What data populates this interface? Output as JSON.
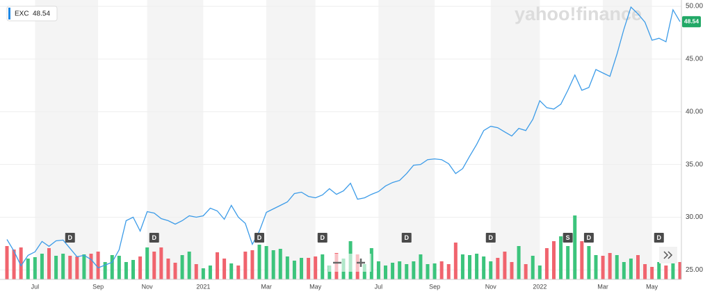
{
  "chart_data": {
    "type": "line",
    "watermark": "yahoo!finance",
    "categories": [
      null,
      null,
      null,
      null,
      "Jul",
      null,
      null,
      null,
      null,
      null,
      null,
      null,
      null,
      "Sep",
      null,
      null,
      null,
      null,
      null,
      null,
      "Nov",
      null,
      null,
      null,
      null,
      null,
      null,
      null,
      "2021",
      null,
      null,
      null,
      null,
      null,
      null,
      null,
      null,
      "Mar",
      null,
      null,
      null,
      null,
      null,
      null,
      "May",
      null,
      null,
      null,
      null,
      null,
      null,
      null,
      null,
      "Jul",
      null,
      null,
      null,
      null,
      null,
      null,
      null,
      "Sep",
      null,
      null,
      null,
      null,
      null,
      null,
      null,
      "Nov",
      null,
      null,
      null,
      null,
      null,
      null,
      "2022",
      null,
      null,
      null,
      null,
      null,
      null,
      null,
      null,
      "Mar",
      null,
      null,
      null,
      null,
      null,
      null,
      "May",
      null,
      null,
      null,
      null
    ],
    "series": [
      {
        "name": "EXC",
        "color": "#3b9be8",
        "values": [
          27.89,
          26.78,
          25.39,
          26.38,
          26.71,
          27.7,
          27.24,
          27.76,
          27.83,
          27.04,
          26.25,
          26.38,
          25.99,
          25.2,
          25.46,
          25.72,
          26.91,
          29.67,
          30.0,
          28.68,
          30.53,
          30.39,
          29.87,
          29.67,
          29.34,
          29.67,
          30.13,
          30.0,
          30.13,
          30.86,
          30.59,
          29.8,
          31.12,
          30.0,
          29.41,
          27.43,
          28.68,
          30.46,
          30.79,
          31.12,
          31.45,
          32.24,
          32.37,
          31.97,
          31.84,
          32.11,
          32.7,
          32.17,
          32.5,
          33.22,
          31.71,
          31.84,
          32.17,
          32.43,
          32.96,
          33.29,
          33.49,
          34.14,
          34.93,
          35.0,
          35.46,
          35.53,
          35.46,
          35.07,
          34.14,
          34.61,
          35.79,
          36.91,
          38.22,
          38.62,
          38.49,
          38.09,
          37.7,
          38.42,
          38.22,
          39.28,
          41.05,
          40.39,
          40.26,
          40.72,
          42.04,
          43.49,
          42.04,
          42.3,
          44.01,
          43.68,
          43.36,
          45.46,
          47.83,
          49.93,
          49.28,
          48.49,
          46.78,
          46.97,
          46.64,
          49.67,
          48.54
        ]
      }
    ],
    "volume": [
      48,
      43,
      46,
      30,
      32,
      37,
      45,
      34,
      37,
      34,
      33,
      36,
      37,
      40,
      25,
      35,
      34,
      25,
      28,
      33,
      46,
      40,
      46,
      30,
      24,
      35,
      40,
      22,
      16,
      20,
      39,
      30,
      23,
      20,
      40,
      42,
      50,
      48,
      42,
      44,
      33,
      27,
      31,
      31,
      33,
      36,
      20,
      38,
      30,
      55,
      36,
      22,
      45,
      26,
      20,
      24,
      26,
      22,
      26,
      36,
      22,
      23,
      26,
      22,
      53,
      36,
      35,
      37,
      33,
      26,
      31,
      40,
      25,
      48,
      22,
      34,
      20,
      45,
      55,
      62,
      48,
      92,
      55,
      48,
      35,
      34,
      38,
      35,
      25,
      30,
      35,
      22,
      18,
      25,
      20,
      35,
      25
    ],
    "up_color": "#3cc47c",
    "down_color": "#f0646e",
    "events": [
      null,
      null,
      null,
      null,
      null,
      null,
      null,
      null,
      null,
      "D",
      null,
      null,
      null,
      null,
      null,
      null,
      null,
      null,
      null,
      null,
      null,
      "D",
      null,
      null,
      null,
      null,
      null,
      null,
      null,
      null,
      null,
      null,
      null,
      null,
      null,
      null,
      "D",
      null,
      null,
      null,
      null,
      null,
      null,
      null,
      null,
      "D",
      null,
      null,
      null,
      null,
      null,
      null,
      null,
      null,
      null,
      null,
      null,
      "D",
      null,
      null,
      null,
      null,
      null,
      null,
      null,
      null,
      null,
      null,
      null,
      "D",
      null,
      null,
      null,
      null,
      null,
      null,
      null,
      null,
      null,
      null,
      "S",
      null,
      null,
      "D",
      null,
      null,
      null,
      null,
      null,
      null,
      null,
      null,
      null,
      "D",
      null,
      null,
      null
    ],
    "ylim": [
      24.1,
      50.6
    ],
    "yticks": [
      {
        "value": 25,
        "label": "25.00"
      },
      {
        "value": 30,
        "label": "30.00"
      },
      {
        "value": 35,
        "label": "35.00"
      },
      {
        "value": 40,
        "label": "40.00"
      },
      {
        "value": 45,
        "label": "45.00"
      },
      {
        "value": 50,
        "label": "50.00"
      }
    ],
    "grid": true
  }
}
